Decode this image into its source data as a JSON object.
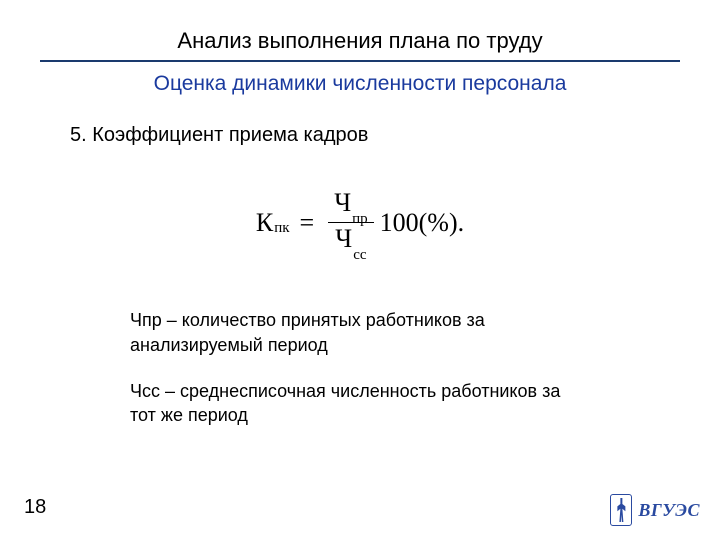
{
  "header": {
    "title": "Анализ выполнения плана по труду",
    "subtitle": "Оценка динамики численности персонала",
    "rule_color": "#1a3a6e",
    "subtitle_color": "#1a3a9e"
  },
  "section": {
    "number": "5.",
    "title": "Коэффициент приема кадров"
  },
  "formula": {
    "lhs_main": "К",
    "lhs_sub": "пк",
    "equals": "=",
    "numerator_main": "Ч",
    "numerator_sub": "пр",
    "denominator_main": "Ч",
    "denominator_sub": "сс",
    "tail": "100(%)."
  },
  "definitions": [
    {
      "symbol": "Чпр",
      "text": " – количество принятых работников за анализируемый период"
    },
    {
      "symbol": "Чсс",
      "text": " – среднесписочная численность работников за тот же период"
    }
  ],
  "footer": {
    "page_number": "18",
    "logo_text": "ВГУЭС",
    "logo_color": "#2a4aa0"
  }
}
